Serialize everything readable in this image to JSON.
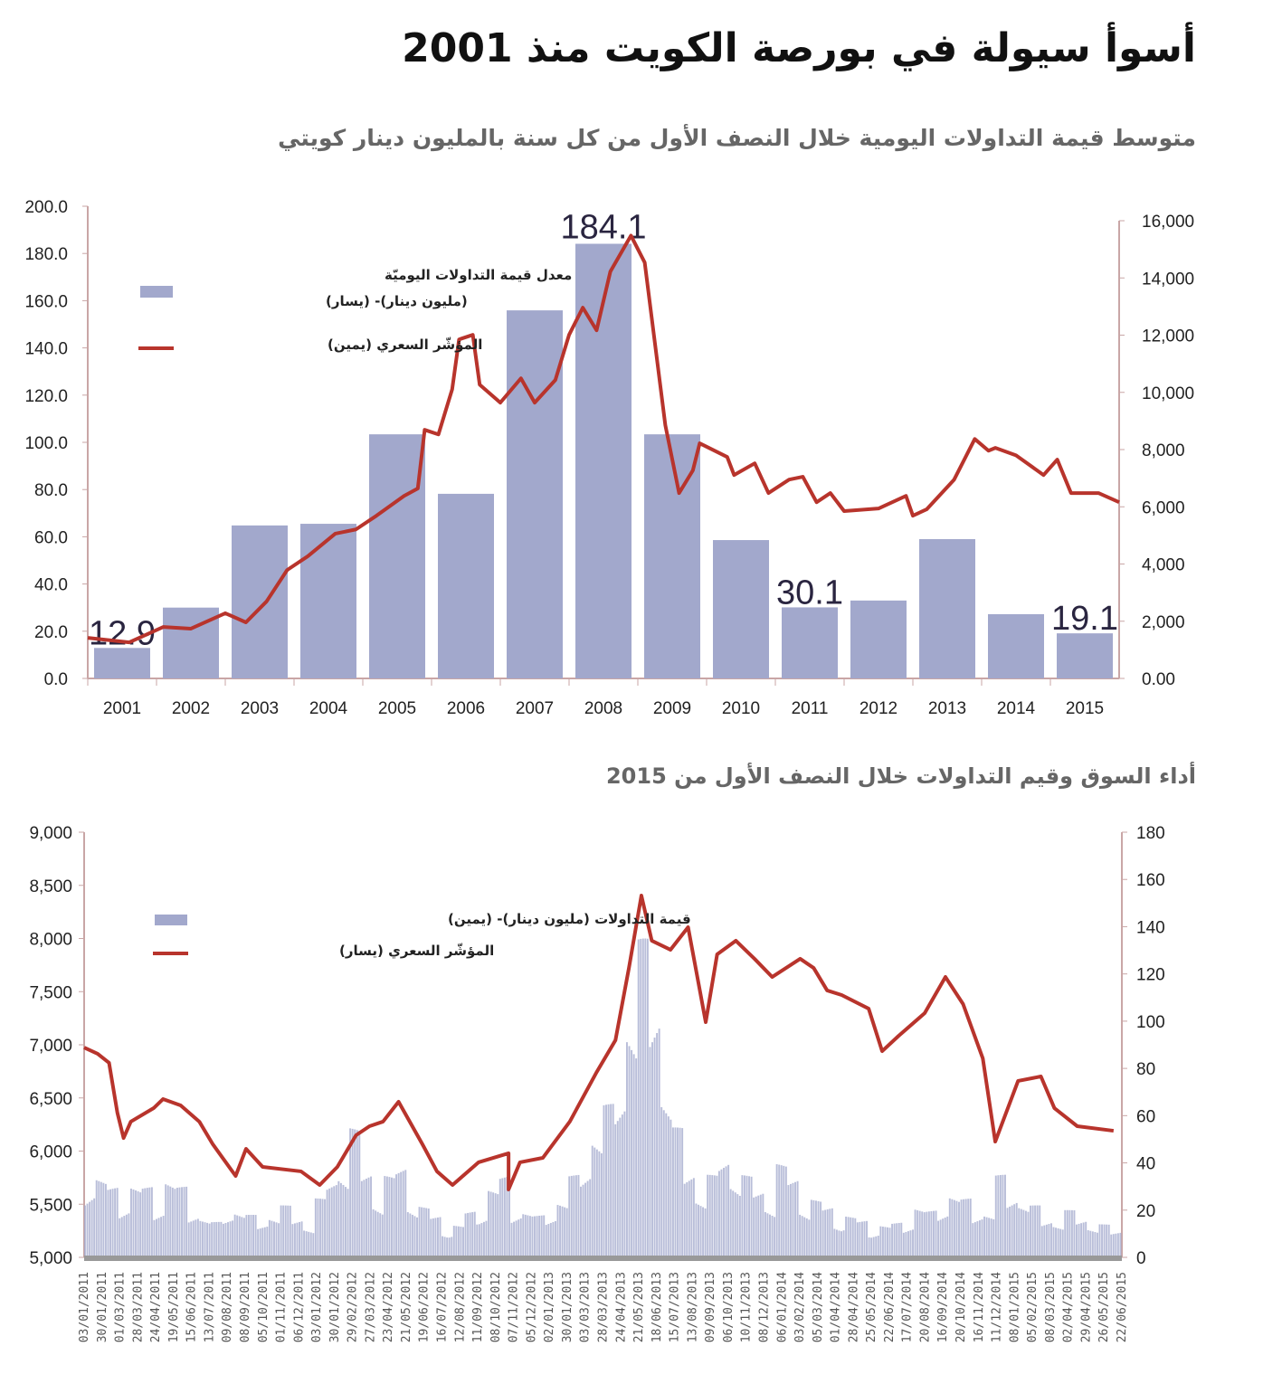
{
  "title": "أسوأ سيولة في بورصة الكويت منذ 2001",
  "subtitle": "متوسط قيمة التداولات اليومية خلال النصف الأول من كل سنة بالمليون دينار كويتي",
  "subtitle2": "أداء السوق وقيم التداولات خلال النصف الأول من 2015",
  "colors": {
    "bar": "#a2a8cc",
    "line": "#b8342c",
    "axis": "#c9a6a6"
  },
  "chart_data": [
    {
      "type": "bar",
      "title": "متوسط قيمة التداولات اليومية خلال النصف الأول من كل سنة بالمليون دينار كويتي",
      "categories": [
        "2001",
        "2002",
        "2003",
        "2004",
        "2005",
        "2006",
        "2007",
        "2008",
        "2009",
        "2010",
        "2011",
        "2012",
        "2013",
        "2014",
        "2015"
      ],
      "series": [
        {
          "name": "معدل قيمة التداولات اليوميّة (مليون دينار)- (يسار)",
          "axis": "left",
          "values": [
            12.9,
            30,
            64.8,
            65.5,
            103.4,
            78.2,
            155.9,
            184.1,
            103.4,
            58.6,
            30.1,
            33,
            59,
            27.2,
            19.1
          ]
        },
        {
          "name": "المؤشّر السعري (يمين)",
          "axis": "right",
          "type": "line",
          "x": [
            2001.0,
            2001.6,
            2002.1,
            2002.5,
            2003.0,
            2003.3,
            2003.6,
            2003.9,
            2004.2,
            2004.6,
            2004.9,
            2005.2,
            2005.6,
            2005.8,
            2005.9,
            2006.1,
            2006.3,
            2006.4,
            2006.6,
            2006.7,
            2007.0,
            2007.3,
            2007.5,
            2007.8,
            2008.0,
            2008.2,
            2008.4,
            2008.6,
            2008.9,
            2009.1,
            2009.2,
            2009.4,
            2009.6,
            2009.8,
            2009.9,
            2010.3,
            2010.4,
            2010.7,
            2010.9,
            2011.2,
            2011.4,
            2011.6,
            2011.8,
            2012.0,
            2012.5,
            2012.9,
            2013.0,
            2013.2,
            2013.6,
            2013.9,
            2014.1,
            2014.2,
            2014.5,
            2014.9,
            2015.1,
            2015.3,
            2015.5,
            2015.7,
            2016.0
          ],
          "values": [
            1420,
            1260,
            1800,
            1740,
            2280,
            1960,
            2690,
            3790,
            4270,
            5060,
            5210,
            5690,
            6380,
            6640,
            8690,
            8530,
            10110,
            11850,
            12010,
            10270,
            9640,
            10490,
            9640,
            10430,
            12010,
            12960,
            12170,
            14220,
            15480,
            14540,
            12640,
            8850,
            6480,
            7270,
            8220,
            7740,
            7110,
            7520,
            6480,
            6950,
            7050,
            6160,
            6480,
            5850,
            5940,
            6380,
            5690,
            5910,
            6950,
            8370,
            7960,
            8060,
            7800,
            7110,
            7650,
            6480,
            6480,
            6480,
            6160
          ]
        }
      ],
      "data_labels": {
        "2001": "12.9",
        "2008": "184.1",
        "2011": "30.1",
        "2015": "19.1"
      },
      "ylim_left": [
        0,
        200
      ],
      "yticks_left": [
        "0.0",
        "20.0",
        "40.0",
        "60.0",
        "80.0",
        "100.0",
        "120.0",
        "140.0",
        "160.0",
        "180.0",
        "200.0"
      ],
      "ylim_right": [
        0,
        16000
      ],
      "yticks_right": [
        "0.00",
        "2,000",
        "4,000",
        "6,000",
        "8,000",
        "10,000",
        "12,000",
        "14,000",
        "16,000"
      ],
      "legend": [
        "معدل قيمة التداولات اليوميّة",
        "(مليون دينار)- (يسار)",
        "المؤشّر السعري (يمين)"
      ]
    },
    {
      "type": "bar+line",
      "title": "أداء السوق وقيم التداولات خلال النصف الأول من 2015",
      "series": [
        {
          "name": "قيمة التداولات (مليون دينار)- (يمين)",
          "axis": "right",
          "values": [
            40,
            35,
            30,
            28,
            32,
            30,
            25,
            35,
            30,
            22,
            18,
            15,
            20,
            22,
            18,
            16,
            20,
            22,
            18,
            15,
            25,
            35,
            45,
            55,
            38,
            30,
            35,
            40,
            30,
            22,
            18,
            15,
            14,
            20,
            25,
            30,
            35,
            25,
            20,
            18,
            22,
            25,
            35,
            45,
            55,
            65,
            80,
            110,
            135,
            120,
            80,
            55,
            40,
            30,
            35,
            45,
            40,
            35,
            30,
            28,
            40,
            35,
            28,
            25,
            22,
            20,
            18,
            16,
            15,
            14,
            15,
            18,
            22,
            20,
            25,
            28,
            25,
            22,
            20,
            35,
            30,
            25,
            22,
            18,
            16,
            20,
            18,
            15,
            14,
            12
          ]
        },
        {
          "name": "المؤشّر السعري (يسار)",
          "axis": "left",
          "type": "line",
          "t": [
            0,
            0.013,
            0.024,
            0.032,
            0.038,
            0.045,
            0.067,
            0.076,
            0.093,
            0.111,
            0.124,
            0.146,
            0.156,
            0.172,
            0.209,
            0.227,
            0.244,
            0.262,
            0.275,
            0.288,
            0.303,
            0.326,
            0.34,
            0.355,
            0.38,
            0.409,
            0.409,
            0.42,
            0.442,
            0.468,
            0.494,
            0.512,
            0.525,
            0.537,
            0.547,
            0.565,
            0.582,
            0.599,
            0.61,
            0.628,
            0.646,
            0.663,
            0.69,
            0.703,
            0.716,
            0.73,
            0.756,
            0.769,
            0.785,
            0.81,
            0.83,
            0.847,
            0.866,
            0.878,
            0.9,
            0.922,
            0.935,
            0.957,
            0.992
          ],
          "values": [
            6974,
            6915,
            6830,
            6362,
            6123,
            6277,
            6404,
            6489,
            6430,
            6277,
            6064,
            5766,
            6021,
            5851,
            5809,
            5681,
            5851,
            6149,
            6234,
            6277,
            6464,
            6064,
            5809,
            5681,
            5894,
            5979,
            5638,
            5894,
            5936,
            6277,
            6745,
            7043,
            7723,
            8404,
            7979,
            7894,
            8106,
            7213,
            7851,
            7979,
            7809,
            7638,
            7809,
            7723,
            7511,
            7468,
            7340,
            6940,
            7085,
            7298,
            7638,
            7383,
            6872,
            6089,
            6660,
            6702,
            6404,
            6234,
            6191
          ]
        }
      ],
      "ylim_left": [
        5000,
        9000
      ],
      "yticks_left": [
        "5,000",
        "5,500",
        "6,000",
        "6,500",
        "7,000",
        "7,500",
        "8,000",
        "8,500",
        "9,000"
      ],
      "ylim_right": [
        0,
        180
      ],
      "yticks_right": [
        "0",
        "20",
        "40",
        "60",
        "80",
        "100",
        "120",
        "140",
        "160",
        "180"
      ],
      "xticks": [
        "03/01/2011",
        "30/01/2011",
        "01/03/2011",
        "28/03/2011",
        "24/04/2011",
        "19/05/2011",
        "15/06/2011",
        "13/07/2011",
        "09/08/2011",
        "08/09/2011",
        "05/10/2011",
        "01/11/2011",
        "06/12/2011",
        "03/01/2012",
        "30/01/2012",
        "29/02/2012",
        "27/03/2012",
        "23/04/2012",
        "21/05/2012",
        "19/06/2012",
        "16/07/2012",
        "12/08/2012",
        "11/09/2012",
        "08/10/2012",
        "07/11/2012",
        "05/12/2012",
        "02/01/2013",
        "30/01/2013",
        "03/03/2013",
        "28/03/2013",
        "24/04/2013",
        "21/05/2013",
        "18/06/2013",
        "15/07/2013",
        "13/08/2013",
        "09/09/2013",
        "06/10/2013",
        "10/11/2013",
        "08/12/2013",
        "06/01/2014",
        "03/02/2014",
        "05/03/2014",
        "01/04/2014",
        "28/04/2014",
        "25/05/2014",
        "22/06/2014",
        "17/07/2014",
        "20/08/2014",
        "16/09/2014",
        "20/10/2014",
        "16/11/2014",
        "11/12/2014",
        "08/01/2015",
        "05/02/2015",
        "08/03/2015",
        "02/04/2015",
        "29/04/2015",
        "26/05/2015",
        "22/06/2015"
      ],
      "legend": [
        "قيمة التداولات (مليون دينار)- (يمين)",
        "المؤشّر السعري (يسار)"
      ]
    }
  ]
}
